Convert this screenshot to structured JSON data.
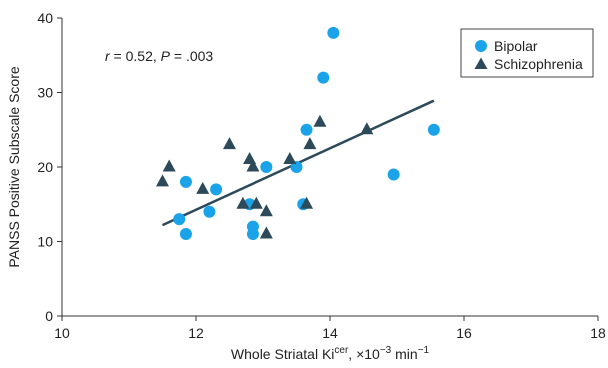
{
  "chart_data": {
    "type": "scatter",
    "title": "",
    "xlabel": {
      "main": "Whole Striatal Ki",
      "sup": "cer",
      "rest": ", ×10",
      "exp": "−3",
      "unit": " min",
      "unit_exp": "−1"
    },
    "ylabel": "PANSS Positive Subscale Score",
    "xlim": [
      10,
      18
    ],
    "ylim": [
      0,
      40
    ],
    "xticks": [
      "10",
      "12",
      "14",
      "16",
      "18"
    ],
    "yticks": [
      "0",
      "10",
      "20",
      "30",
      "40"
    ],
    "grid": false,
    "legend_position": "top-right",
    "annotation": {
      "r_sym": "r",
      "r_text": " = 0.52, ",
      "p_sym": "P",
      "p_text": " = .003"
    },
    "series": [
      {
        "name": "Bipolar",
        "marker": "circle",
        "color": "#1aa3e8",
        "points": [
          [
            14.05,
            38
          ],
          [
            13.9,
            32
          ],
          [
            15.55,
            25
          ],
          [
            13.65,
            25
          ],
          [
            14.95,
            19
          ],
          [
            13.05,
            20
          ],
          [
            13.5,
            20
          ],
          [
            11.85,
            18
          ],
          [
            12.3,
            17
          ],
          [
            11.75,
            13
          ],
          [
            12.2,
            14
          ],
          [
            12.8,
            15
          ],
          [
            13.6,
            15
          ],
          [
            12.85,
            12
          ],
          [
            11.85,
            11
          ],
          [
            12.85,
            11
          ]
        ]
      },
      {
        "name": "Schizophrenia",
        "marker": "triangle",
        "color": "#2d4a5a",
        "points": [
          [
            13.85,
            26
          ],
          [
            14.55,
            25
          ],
          [
            13.7,
            23
          ],
          [
            12.5,
            23
          ],
          [
            11.6,
            20
          ],
          [
            12.8,
            21
          ],
          [
            12.85,
            20
          ],
          [
            13.4,
            21
          ],
          [
            11.5,
            18
          ],
          [
            12.1,
            17
          ],
          [
            12.7,
            15
          ],
          [
            12.9,
            15
          ],
          [
            13.65,
            15
          ],
          [
            13.05,
            14
          ],
          [
            13.05,
            11
          ]
        ]
      }
    ],
    "trendline": {
      "color": "#2d4a5a",
      "x": [
        11.5,
        15.55
      ],
      "y": [
        12.2,
        28.9
      ]
    }
  }
}
